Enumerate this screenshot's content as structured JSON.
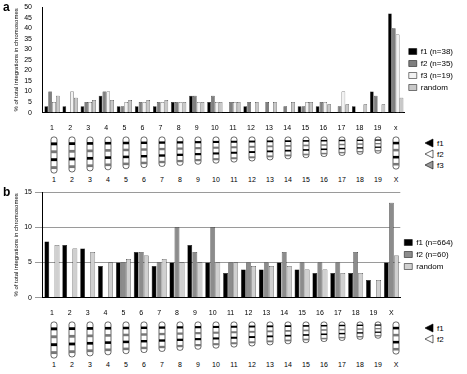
{
  "chart_data": [
    {
      "type": "bar",
      "title": "a",
      "y_label": "% of total integrations in chromosomes",
      "categories": [
        "1",
        "2",
        "3",
        "4",
        "5",
        "6",
        "7",
        "8",
        "9",
        "10",
        "11",
        "12",
        "13",
        "14",
        "15",
        "16",
        "17",
        "18",
        "19",
        "x"
      ],
      "series": [
        {
          "name": "f1 (n=38)",
          "color": "#000000",
          "values": [
            3,
            3,
            3,
            8,
            3,
            3,
            3,
            5,
            8,
            5,
            0,
            3,
            0,
            0,
            3,
            3,
            0,
            3,
            10,
            47
          ]
        },
        {
          "name": "f2 (n=35)",
          "color": "#7f7f7f",
          "values": [
            10,
            0,
            5,
            10,
            3,
            5,
            5,
            5,
            8,
            8,
            5,
            5,
            5,
            3,
            3,
            5,
            3,
            0,
            8,
            40
          ]
        },
        {
          "name": "f3 (n=19)",
          "color": "#f2f2f2",
          "values": [
            5,
            10,
            5,
            10,
            5,
            5,
            5,
            5,
            5,
            5,
            5,
            0,
            0,
            0,
            5,
            5,
            10,
            0,
            0,
            37
          ]
        },
        {
          "name": "random",
          "color": "#c8c8c8",
          "values": [
            8,
            7,
            6,
            6,
            6,
            6,
            6,
            5,
            5,
            5,
            5,
            5,
            5,
            5,
            5,
            4,
            4,
            4,
            4,
            7
          ]
        }
      ],
      "ylim": [
        0,
        50
      ],
      "yticks": [
        0,
        5,
        10,
        15,
        20,
        25,
        30,
        35,
        40,
        45,
        50
      ],
      "grid": false,
      "legend": "right"
    },
    {
      "type": "bar",
      "title": "b",
      "y_label": "% of total integrations in chromosomes",
      "categories": [
        "1",
        "2",
        "3",
        "4",
        "5",
        "6",
        "7",
        "8",
        "9",
        "10",
        "11",
        "12",
        "13",
        "14",
        "15",
        "16",
        "17",
        "18",
        "19",
        "X"
      ],
      "series": [
        {
          "name": "f1 (n=664)",
          "color": "#000000",
          "values": [
            8,
            7.5,
            7,
            4.5,
            5,
            6.5,
            4.5,
            5,
            7.5,
            5,
            3.5,
            4,
            4,
            5,
            4,
            3.5,
            3.5,
            3.5,
            2.5,
            5
          ]
        },
        {
          "name": "f2 (n=60)",
          "color": "#8c8c8c",
          "values": [
            0,
            0,
            0,
            0,
            5,
            6.5,
            5,
            10,
            6.5,
            10,
            5,
            5,
            5,
            6.5,
            5,
            5,
            5,
            6.5,
            0,
            13.5
          ]
        },
        {
          "name": "random",
          "color": "#d0d0d0",
          "values": [
            7.5,
            7,
            6.5,
            5,
            5.5,
            6,
            5.5,
            5,
            5,
            5,
            5,
            4.5,
            4.5,
            4.5,
            4,
            4,
            3.5,
            3.5,
            2.5,
            6
          ]
        }
      ],
      "ylim": [
        0,
        15
      ],
      "yticks": [
        0,
        5,
        10,
        15
      ],
      "grid": true,
      "legend": "right"
    }
  ],
  "ideograms": [
    {
      "chromosomes": [
        "1",
        "2",
        "3",
        "4",
        "5",
        "6",
        "7",
        "8",
        "9",
        "10",
        "11",
        "12",
        "13",
        "14",
        "15",
        "16",
        "17",
        "18",
        "19",
        "X"
      ],
      "legend": [
        {
          "name": "f1",
          "color": "#000000"
        },
        {
          "name": "f2",
          "color": "#ffffff"
        },
        {
          "name": "f3",
          "color": "#9a9a9a"
        }
      ]
    },
    {
      "chromosomes": [
        "1",
        "2",
        "3",
        "4",
        "5",
        "6",
        "7",
        "8",
        "9",
        "10",
        "11",
        "12",
        "13",
        "14",
        "15",
        "16",
        "17",
        "18",
        "19",
        "X"
      ],
      "legend": [
        {
          "name": "f1",
          "color": "#000000"
        },
        {
          "name": "f2",
          "color": "#ffffff"
        }
      ]
    }
  ]
}
